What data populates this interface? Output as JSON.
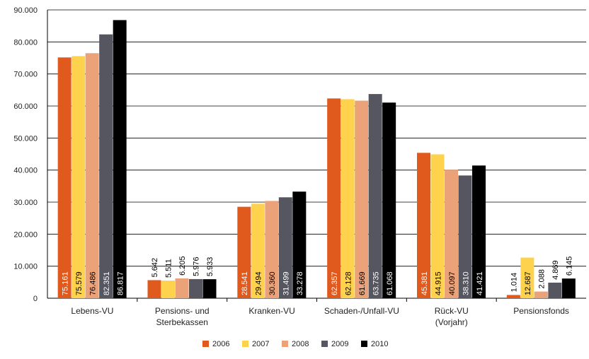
{
  "chart_data": {
    "type": "bar",
    "categories": [
      [
        "Lebens-VU"
      ],
      [
        "Pensions- und",
        "Sterbekassen"
      ],
      [
        "Kranken-VU"
      ],
      [
        "Schaden-/Unfall-VU"
      ],
      [
        "Rück-VU",
        "(Vorjahr)"
      ],
      [
        "Pensionsfonds"
      ]
    ],
    "series": [
      {
        "name": "2006",
        "color": "#E05A1E",
        "values": [
          75161,
          5642,
          28541,
          62357,
          45381,
          1014
        ],
        "labels": [
          "75.161",
          "5.642",
          "28.541",
          "62.357",
          "45.381",
          "1.014"
        ]
      },
      {
        "name": "2007",
        "color": "#FFD24D",
        "values": [
          75579,
          5511,
          29494,
          62128,
          44915,
          12687
        ],
        "labels": [
          "75.579",
          "5.511",
          "29.494",
          "62.128",
          "44.915",
          "12.687"
        ]
      },
      {
        "name": "2008",
        "color": "#EBA279",
        "values": [
          76486,
          6205,
          30360,
          61669,
          40097,
          2088
        ],
        "labels": [
          "76.486",
          "6.205",
          "30.360",
          "61.669",
          "40.097",
          "2.088"
        ]
      },
      {
        "name": "2009",
        "color": "#565660",
        "values": [
          82351,
          5976,
          31499,
          63735,
          38310,
          4869
        ],
        "labels": [
          "82.351",
          "5.976",
          "31.499",
          "63.735",
          "38.310",
          "4.869"
        ]
      },
      {
        "name": "2010",
        "color": "#000000",
        "values": [
          86817,
          5933,
          33278,
          61068,
          41421,
          6145
        ],
        "labels": [
          "86.817",
          "5.933",
          "33.278",
          "61.068",
          "41.421",
          "6.145"
        ]
      }
    ],
    "yticks": [
      0,
      10000,
      20000,
      30000,
      40000,
      50000,
      60000,
      70000,
      80000,
      90000
    ],
    "ytick_labels": [
      "0",
      "10.000",
      "20.000",
      "30.000",
      "40.000",
      "50.000",
      "60.000",
      "70.000",
      "80.000",
      "90.000"
    ],
    "ylim": [
      0,
      90000
    ],
    "grid": true,
    "legend_position": "bottom-center"
  }
}
